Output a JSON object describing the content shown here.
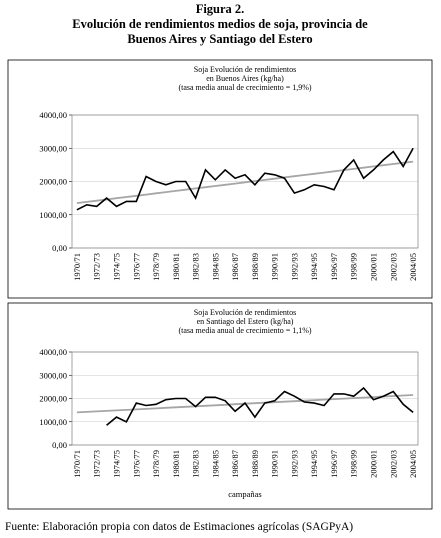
{
  "header": {
    "figure": "Figura 2.",
    "title": [
      "Evolución de rendimientos medios de soja, provincia de",
      "Buenos Aires y Santiago del Estero"
    ]
  },
  "chart_data": [
    {
      "type": "line",
      "title": [
        "Soja Evolución de rendimientos",
        "en Buenos Aires (kg/ha)",
        "(tasa media anual de crecimiento = 1,9%)"
      ],
      "categories": [
        "1970/71",
        null,
        "1972/73",
        null,
        "1974/75",
        null,
        "1976/77",
        null,
        "1978/79",
        null,
        "1980/81",
        null,
        "1982/83",
        null,
        "1984/85",
        null,
        "1986/87",
        null,
        "1988/89",
        null,
        "1990/91",
        null,
        "1992/93",
        null,
        "1994/95",
        null,
        "1996/97",
        null,
        "1998/99",
        null,
        "2000/01",
        null,
        "2002/03",
        null,
        "2004/05"
      ],
      "series": [
        {
          "color": "#000000",
          "values": [
            1150,
            1300,
            1250,
            1500,
            1250,
            1400,
            1400,
            2150,
            2000,
            1900,
            2000,
            2000,
            1500,
            2350,
            2050,
            2350,
            2100,
            2200,
            1900,
            2250,
            2200,
            2100,
            1650,
            1750,
            1900,
            1850,
            1750,
            2350,
            2650,
            2100,
            2350,
            2650,
            2900,
            2450,
            3000
          ]
        },
        {
          "color": "#a6a6a6",
          "values": [
            1350,
            1387,
            1424,
            1460,
            1497,
            1534,
            1571,
            1607,
            1644,
            1681,
            1718,
            1754,
            1791,
            1828,
            1865,
            1901,
            1938,
            1975,
            2012,
            2048,
            2085,
            2122,
            2159,
            2195,
            2232,
            2269,
            2306,
            2342,
            2379,
            2416,
            2453,
            2489,
            2526,
            2563,
            2600
          ]
        }
      ],
      "ylim": [
        0,
        4000
      ],
      "yticks": [
        {
          "value": 0,
          "label": "0,00"
        },
        {
          "value": 1000,
          "label": "1000,00"
        },
        {
          "value": 2000,
          "label": "2000,00"
        },
        {
          "value": 3000,
          "label": "3000,00"
        },
        {
          "value": 4000,
          "label": "4000,00"
        }
      ],
      "grid": true
    },
    {
      "type": "line",
      "title": [
        "Soja Evolución de rendimientos",
        "en Santiago del Estero (kg/ha)",
        "(tasa media anual de crecimiento = 1,1%)"
      ],
      "x_label": "campañas",
      "categories": [
        "1970/71",
        null,
        "1972/73",
        null,
        "1974/75",
        null,
        "1976/77",
        null,
        "1978/79",
        null,
        "1980/81",
        null,
        "1982/83",
        null,
        "1984/85",
        null,
        "1986/87",
        null,
        "1988/89",
        null,
        "1990/91",
        null,
        "1992/93",
        null,
        "1994/95",
        null,
        "1996/97",
        null,
        "1998/99",
        null,
        "2000/01",
        null,
        "2002/03",
        null,
        "2004/05"
      ],
      "series": [
        {
          "color": "#000000",
          "values": [
            null,
            null,
            null,
            850,
            1200,
            1000,
            1800,
            1700,
            1750,
            1950,
            2000,
            2000,
            1650,
            2050,
            2050,
            1900,
            1450,
            1800,
            1200,
            1800,
            1900,
            2300,
            2100,
            1850,
            1800,
            1700,
            2200,
            2200,
            2100,
            2450,
            1950,
            2100,
            2300,
            1750,
            1400
          ]
        },
        {
          "color": "#a6a6a6",
          "values": [
            1400,
            1422,
            1444,
            1466,
            1488,
            1510,
            1532,
            1554,
            1576,
            1599,
            1621,
            1643,
            1665,
            1687,
            1709,
            1731,
            1753,
            1775,
            1797,
            1819,
            1841,
            1863,
            1885,
            1907,
            1929,
            1951,
            1974,
            1996,
            2018,
            2040,
            2062,
            2084,
            2106,
            2128,
            2150
          ]
        }
      ],
      "ylim": [
        0,
        4000
      ],
      "yticks": [
        {
          "value": 0,
          "label": "0,00"
        },
        {
          "value": 1000,
          "label": "1000,00"
        },
        {
          "value": 2000,
          "label": "2000,00"
        },
        {
          "value": 3000,
          "label": "3000,00"
        },
        {
          "value": 4000,
          "label": "4000,00"
        }
      ],
      "grid": true
    }
  ],
  "source": "Fuente: Elaboración propia con datos de Estimaciones agrícolas (SAGPyA)"
}
